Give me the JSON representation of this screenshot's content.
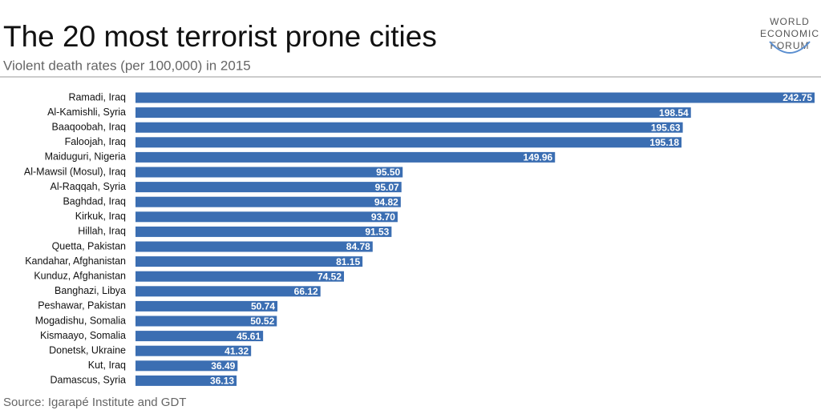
{
  "chart_data": {
    "type": "bar",
    "orientation": "horizontal",
    "title": "The 20 most terrorist prone cities",
    "subtitle": "Violent death rates (per 100,000) in 2015",
    "source": "Source: Igarapé Institute and GDT",
    "logo": [
      "WORLD",
      "ECONOMIC",
      "FORUM"
    ],
    "color": "#3b6eb2",
    "categories": [
      "Ramadi, Iraq",
      "Al-Kamishli, Syria",
      "Baaqoobah, Iraq",
      "Faloojah, Iraq",
      "Maiduguri, Nigeria",
      "Al-Mawsil (Mosul), Iraq",
      "Al-Raqqah, Syria",
      "Baghdad, Iraq",
      "Kirkuk, Iraq",
      "Hillah, Iraq",
      "Quetta, Pakistan",
      "Kandahar, Afghanistan",
      "Kunduz, Afghanistan",
      "Banghazi, Libya",
      "Peshawar, Pakistan",
      "Mogadishu, Somalia",
      "Kismaayo, Somalia",
      "Donetsk, Ukraine",
      "Kut, Iraq",
      "Damascus, Syria"
    ],
    "values": [
      242.75,
      198.54,
      195.63,
      195.18,
      149.96,
      95.5,
      95.07,
      94.82,
      93.7,
      91.53,
      84.78,
      81.15,
      74.52,
      66.12,
      50.74,
      50.52,
      45.61,
      41.32,
      36.49,
      36.13
    ],
    "value_labels": [
      "242.75",
      "198.54",
      "195.63",
      "195.18",
      "149.96",
      "95.50",
      "95.07",
      "94.82",
      "93.70",
      "91.53",
      "84.78",
      "81.15",
      "74.52",
      "66.12",
      "50.74",
      "50.52",
      "45.61",
      "41.32",
      "36.49",
      "36.13"
    ]
  }
}
